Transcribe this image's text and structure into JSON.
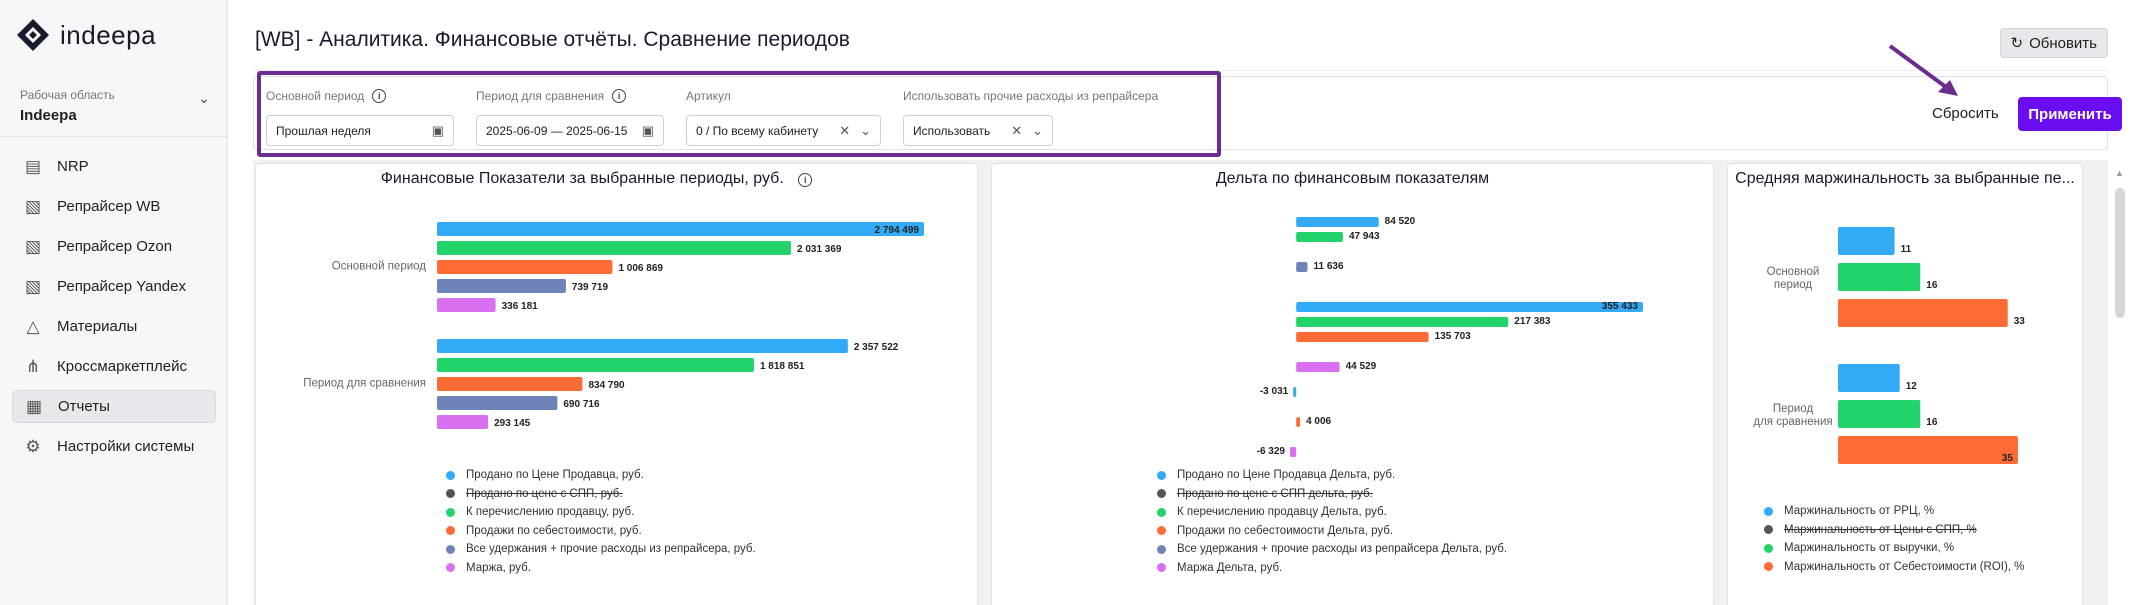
{
  "sidebar": {
    "logo": "indeepa",
    "workspace_label": "Рабочая область",
    "workspace_name": "Indeepa",
    "items": [
      {
        "label": "NRP",
        "icon": "document-icon"
      },
      {
        "label": "Репрайсер WB",
        "icon": "repricer-icon"
      },
      {
        "label": "Репрайсер Ozon",
        "icon": "repricer-icon"
      },
      {
        "label": "Репрайсер Yandex",
        "icon": "repricer-icon"
      },
      {
        "label": "Материалы",
        "icon": "graduation-cap-icon"
      },
      {
        "label": "Кроссмаркетплейс",
        "icon": "network-icon"
      },
      {
        "label": "Отчеты",
        "icon": "reports-icon"
      },
      {
        "label": "Настройки системы",
        "icon": "settings-icon"
      }
    ]
  },
  "header": {
    "title": "[WB] - Аналитика. Финансовые отчёты. Сравнение периодов",
    "refresh_label": "Обновить"
  },
  "filters": {
    "main_period_label": "Основной период",
    "main_period_value": "Прошлая неделя",
    "compare_period_label": "Период для сравнения",
    "compare_period_value": "2025-06-09 — 2025-06-15",
    "article_label": "Артикул",
    "article_value": "0 / По всему кабинету",
    "other_expenses_label": "Использовать прочие расходы из репрайсера",
    "other_expenses_value": "Использовать",
    "reset_label": "Сбросить",
    "apply_label": "Применить"
  },
  "colors": {
    "blue": "#33aaf5",
    "dark": "#555555",
    "green": "#22d36a",
    "orange": "#ff6b35",
    "slate": "#6e84b8",
    "violet": "#d970f0",
    "accent": "#6a0df0",
    "highlight": "#6b2d8e"
  },
  "chart_data": [
    {
      "type": "bar",
      "orientation": "horizontal",
      "title": "Финансовые Показатели за выбранные периоды, руб.",
      "categories": [
        "Основной период",
        "Период для сравнения"
      ],
      "series": [
        {
          "name": "Продано по Цене Продавца, руб.",
          "values": [
            2794499,
            2357522
          ]
        },
        {
          "name": "Продано по цене с СПП, руб.",
          "values": [
            null,
            null
          ],
          "hidden": true
        },
        {
          "name": "К перечислению продавцу, руб.",
          "values": [
            2031369,
            1818851
          ]
        },
        {
          "name": "Продажи по себестоимости, руб.",
          "values": [
            1006869,
            834790
          ]
        },
        {
          "name": "Все удержания + прочие расходы из репрайсера, руб.",
          "values": [
            739719,
            690716
          ]
        },
        {
          "name": "Маржа, руб.",
          "values": [
            336181,
            293145
          ]
        }
      ],
      "value_labels": [
        [
          "2 794 499",
          "2 031 369",
          "1 006 869",
          "739 719",
          "336 181"
        ],
        [
          "2 357 522",
          "1 818 851",
          "834 790",
          "690 716",
          "293 145"
        ]
      ],
      "xlim": [
        0,
        2794499
      ]
    },
    {
      "type": "bar",
      "orientation": "horizontal",
      "title": "Дельта по финансовым показателям",
      "categories": [
        "",
        "",
        ""
      ],
      "series": [
        {
          "name": "Продано по Цене Продавца Дельта, руб.",
          "values": [
            84520,
            355433,
            -3031
          ]
        },
        {
          "name": "Продано по цене с СПП дельта, руб.",
          "values": [
            null,
            null,
            null
          ],
          "hidden": true
        },
        {
          "name": "К перечислению продавцу Дельта, руб.",
          "values": [
            47943,
            217383,
            null
          ]
        },
        {
          "name": "Продажи по себестоимости Дельта, руб.",
          "values": [
            null,
            135703,
            4006
          ]
        },
        {
          "name": "Все удержания + прочие расходы из репрайсера Дельта, руб.",
          "values": [
            11636,
            null,
            null
          ]
        },
        {
          "name": "Маржа Дельта, руб.",
          "values": [
            null,
            44529,
            -6329
          ]
        }
      ],
      "value_labels": [
        [
          "84 520",
          "47 943",
          "",
          "11 636",
          ""
        ],
        [
          "355 433",
          "217 383",
          "135 703",
          "",
          "44 529"
        ],
        [
          "-3 031",
          "",
          "4 006",
          "",
          "-6 329"
        ]
      ],
      "xlim": [
        -6329,
        355433
      ]
    },
    {
      "type": "bar",
      "orientation": "horizontal",
      "title": "Средняя маржинальность за выбранные пе...",
      "categories": [
        "Основной период",
        "Период для сравнения"
      ],
      "series": [
        {
          "name": "Маржинальность от РРЦ, %",
          "values": [
            11,
            12
          ]
        },
        {
          "name": "Маржинальность от Цены с СПП, %",
          "values": [
            null,
            null
          ],
          "hidden": true
        },
        {
          "name": "Маржинальность от выручки, %",
          "values": [
            16,
            16
          ]
        },
        {
          "name": "Маржинальность от Себестоимости (ROI), %",
          "values": [
            33,
            35
          ]
        }
      ],
      "value_labels": [
        [
          "11",
          "16",
          "33"
        ],
        [
          "12",
          "16",
          "35"
        ]
      ],
      "xlim": [
        0,
        35
      ]
    }
  ]
}
